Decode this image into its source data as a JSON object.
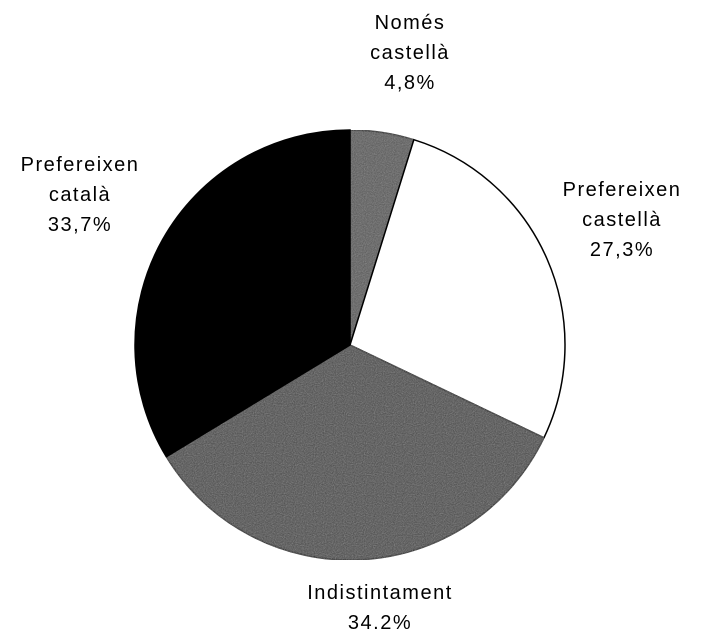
{
  "chart_data": {
    "type": "pie",
    "categories": [
      "Només castellà",
      "Prefereixen castellà",
      "Indistintament",
      "Prefereixen català"
    ],
    "values": [
      4.8,
      27.3,
      34.2,
      33.7
    ],
    "value_labels": [
      "4,8%",
      "27,3%",
      "34.2%",
      "33,7%"
    ],
    "colors": [
      "#555555",
      "#ffffff",
      "#454545",
      "#000000"
    ]
  }
}
